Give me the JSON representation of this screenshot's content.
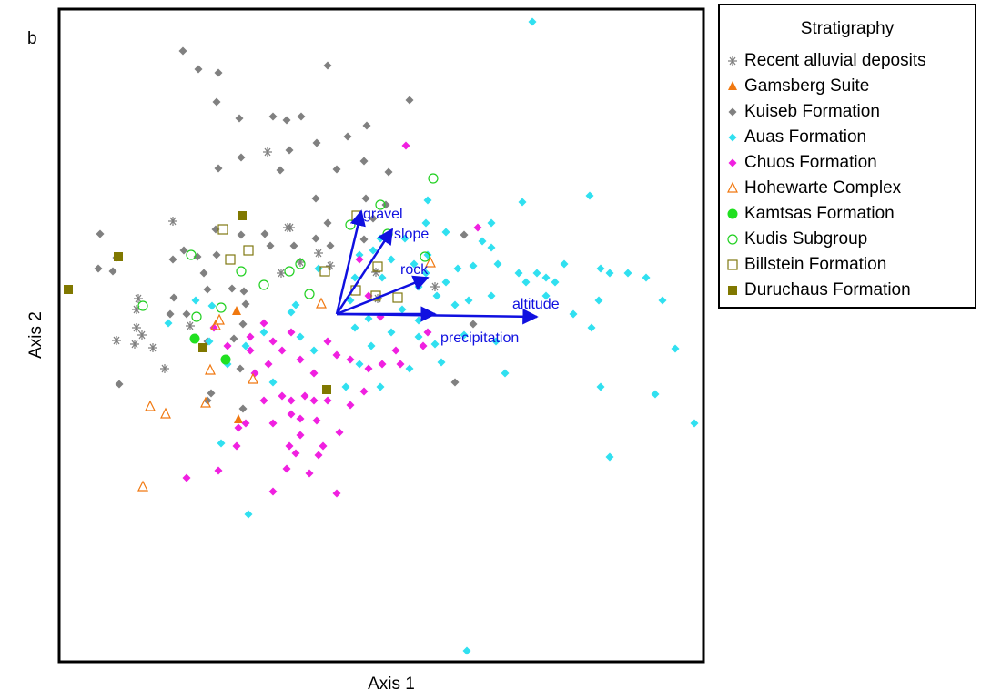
{
  "chart_data": {
    "type": "scatter",
    "panel_label": "b",
    "x_label": "Axis 1",
    "y_label": "Axis 2",
    "xlim": [
      -305,
      403
    ],
    "ylim": [
      -382,
      335
    ],
    "legend_title": "Stratigraphy",
    "legend": "outside-right",
    "series": [
      {
        "name": "Recent alluvial deposits",
        "color": "#808080",
        "marker": "asterisk",
        "x": [
          -76,
          -180,
          -54,
          -51,
          -20,
          -7,
          -40,
          -61,
          -218,
          -220,
          -220,
          -214,
          -242,
          -222,
          -202,
          -161,
          -189,
          43,
          45,
          108
        ],
        "y": [
          178,
          102,
          95,
          95,
          67,
          53,
          57,
          45,
          17,
          5,
          -15,
          -23,
          -29,
          -33,
          -37,
          -13,
          -60,
          46,
          17,
          30
        ]
      },
      {
        "name": "Gamsberg Suite",
        "color": "#f07810",
        "marker": "triangle",
        "x": [
          -110,
          -108
        ],
        "y": [
          3,
          -116
        ]
      },
      {
        "name": "Kuiseb Formation",
        "color": "#808080",
        "marker": "diamond",
        "x": [
          -169,
          -152,
          -130,
          -132,
          -107,
          -70,
          -55,
          -39,
          -10,
          80,
          12,
          33,
          -22,
          -52,
          -130,
          -105,
          -62,
          0,
          30,
          57,
          32,
          -23,
          -10,
          -260,
          -242,
          -262,
          -246,
          -180,
          -168,
          -133,
          -132,
          -153,
          -105,
          -79,
          -73,
          -47,
          -23,
          -7,
          40,
          30,
          54,
          -179,
          -183,
          -165,
          -146,
          -142,
          -115,
          -102,
          -100,
          -103,
          -142,
          -113,
          -106,
          -142,
          -138,
          -103,
          -239,
          140,
          150,
          130
        ],
        "y": [
          289,
          269,
          265,
          233,
          215,
          217,
          213,
          217,
          273,
          235,
          195,
          207,
          188,
          180,
          160,
          172,
          158,
          159,
          168,
          156,
          127,
          127,
          100,
          88,
          62,
          50,
          47,
          60,
          70,
          93,
          65,
          63,
          87,
          88,
          75,
          75,
          83,
          75,
          105,
          82,
          120,
          18,
          0,
          0,
          45,
          27,
          28,
          25,
          11,
          -11,
          -30,
          -27,
          -60,
          -95,
          -87,
          -104,
          -77,
          87,
          -11,
          -75
        ]
      },
      {
        "name": "Auas Formation",
        "color": "#30e0f0",
        "marker": "diamond",
        "x": [
          215,
          143,
          278,
          204,
          100,
          120,
          98,
          170,
          160,
          170,
          177,
          150,
          133,
          100,
          75,
          48,
          40,
          60,
          85,
          98,
          120,
          90,
          110,
          130,
          145,
          170,
          200,
          208,
          220,
          230,
          250,
          240,
          230,
          260,
          290,
          300,
          320,
          340,
          358,
          288,
          280,
          372,
          290,
          350,
          393,
          300,
          185,
          175,
          140,
          108,
          90,
          60,
          38,
          20,
          35,
          72,
          90,
          115,
          80,
          48,
          25,
          10,
          -70,
          -80,
          -100,
          -120,
          -127,
          -97,
          -140,
          -185,
          -155,
          -137,
          -50,
          -40,
          -25,
          15,
          -45,
          -20,
          20,
          50,
          25
        ],
        "y": [
          321,
          -370,
          130,
          123,
          125,
          90,
          100,
          100,
          80,
          73,
          55,
          53,
          50,
          65,
          83,
          83,
          70,
          60,
          55,
          45,
          35,
          30,
          20,
          10,
          15,
          20,
          45,
          35,
          45,
          40,
          55,
          35,
          20,
          0,
          50,
          45,
          45,
          40,
          15,
          15,
          -15,
          -38,
          -80,
          -88,
          -120,
          -157,
          -65,
          -30,
          -23,
          -33,
          -25,
          -20,
          -35,
          -15,
          -5,
          5,
          -7,
          -53,
          -60,
          -80,
          -55,
          -80,
          -75,
          -20,
          -35,
          -55,
          -142,
          -220,
          -30,
          -10,
          15,
          9,
          2,
          -25,
          -40,
          15,
          10,
          50,
          40,
          40,
          65
        ]
      },
      {
        "name": "Chuos Formation",
        "color": "#f020e0",
        "marker": "diamond",
        "x": [
          76,
          155,
          25,
          35,
          48,
          65,
          95,
          100,
          70,
          50,
          35,
          15,
          30,
          15,
          3,
          0,
          -15,
          -22,
          -35,
          -40,
          -55,
          -70,
          -52,
          -70,
          -80,
          -90,
          -95,
          -95,
          -70,
          -60,
          -50,
          -40,
          -25,
          -10,
          0,
          -40,
          -60,
          -50,
          -100,
          -110,
          -130,
          -165,
          -30,
          -20,
          -45,
          -75,
          -80,
          -108,
          -135,
          -120,
          -50,
          -25,
          -10
        ],
        "y": [
          185,
          95,
          60,
          20,
          -3,
          -40,
          -35,
          -20,
          -55,
          -55,
          -60,
          -50,
          -85,
          -100,
          -130,
          -197,
          -145,
          -117,
          -90,
          -133,
          -170,
          -195,
          -145,
          -120,
          -95,
          -65,
          -40,
          -25,
          -30,
          -40,
          -20,
          -50,
          -65,
          -30,
          -45,
          -115,
          -90,
          -95,
          -120,
          -145,
          -172,
          -180,
          -175,
          -155,
          -153,
          -55,
          -10,
          -125,
          -15,
          -35,
          -110,
          -95,
          -95
        ]
      },
      {
        "name": "Hohewarte Complex",
        "color": "#f07810",
        "marker": "open-triangle",
        "x": [
          -129,
          -133,
          -139,
          -144,
          -205,
          -188,
          -213,
          -92,
          -17,
          103
        ],
        "y": [
          -7,
          -13,
          -62,
          -98,
          -102,
          -110,
          -190,
          -72,
          11,
          56
        ]
      },
      {
        "name": "Kamtsas Formation",
        "color": "#20e020",
        "marker": "circle",
        "x": [
          -156,
          -122
        ],
        "y": [
          -27,
          -50
        ]
      },
      {
        "name": "Kudis Subgroup",
        "color": "#20d020",
        "marker": "open-circle",
        "x": [
          106,
          48,
          15,
          56,
          -160,
          -105,
          -80,
          -52,
          -40,
          -30,
          -213,
          -154,
          -127,
          97
        ],
        "y": [
          149,
          120,
          98,
          88,
          65,
          47,
          32,
          47,
          55,
          22,
          9,
          -3,
          7,
          63
        ]
      },
      {
        "name": "Billstein Formation",
        "color": "#807810",
        "marker": "open-square",
        "x": [
          -125,
          -97,
          -117,
          22,
          -13,
          21,
          43,
          67,
          45
        ],
        "y": [
          93,
          70,
          60,
          108,
          47,
          26,
          20,
          18,
          52
        ]
      },
      {
        "name": "Duruchaus Formation",
        "color": "#807800",
        "marker": "square",
        "x": [
          -295,
          -240,
          -104,
          -147,
          -11
        ],
        "y": [
          27,
          63,
          108,
          -37,
          -83
        ]
      }
    ],
    "vector_color": "#1010e0",
    "vectors": [
      {
        "label": "gravel",
        "x": 27,
        "y": 113
      },
      {
        "label": "slope",
        "x": 61,
        "y": 93
      },
      {
        "label": "rock",
        "x": 100,
        "y": 40
      },
      {
        "label": "altitude",
        "x": 220,
        "y": -3
      },
      {
        "label": "precipitation",
        "x": 108,
        "y": 0
      }
    ]
  }
}
